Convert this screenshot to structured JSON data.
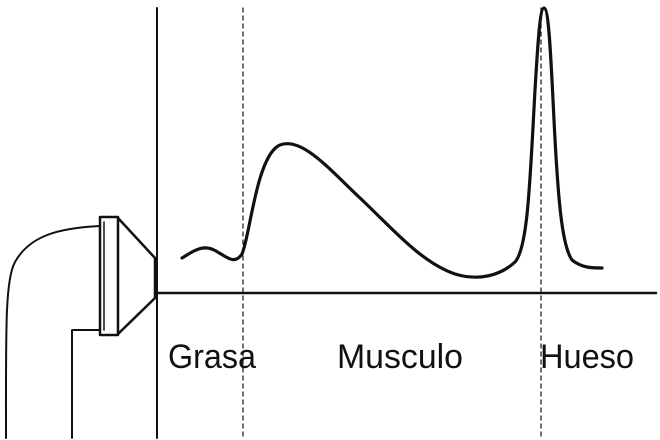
{
  "labels": {
    "fat": "Grasa",
    "muscle": "Musculo",
    "bone": "Hueso"
  }
}
